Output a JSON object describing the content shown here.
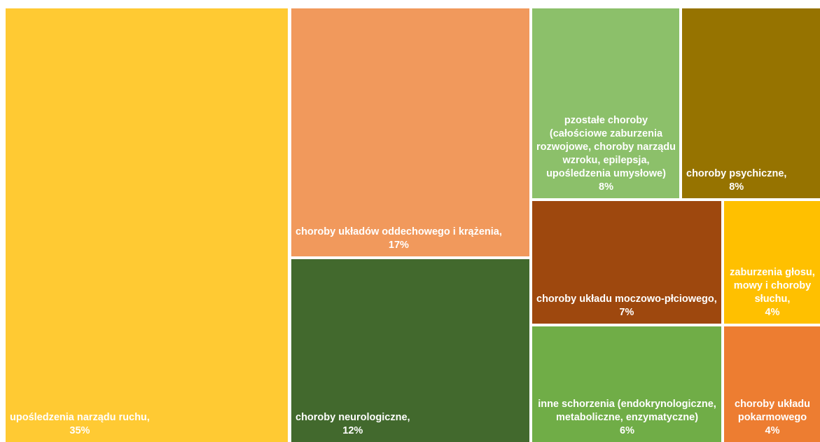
{
  "chart_data": {
    "type": "treemap",
    "categories": [
      "upośledzenia narządu ruchu,",
      "choroby układów oddechowego i krążenia,",
      "choroby neurologiczne,",
      "pzostałe choroby (całościowe zaburzenia rozwojowe, choroby narządu wzroku, epilepsja, upośledzenia umysłowe)",
      "choroby psychiczne,",
      "choroby układu moczowo-płciowego,",
      "zaburzenia głosu, mowy i choroby słuchu,",
      "inne schorzenia (endokrynologiczne, metaboliczne, enzymatyczne)",
      "choroby układu pokarmowego"
    ],
    "values": [
      35,
      17,
      12,
      8,
      8,
      7,
      4,
      6,
      4
    ],
    "value_labels": [
      "35%",
      "17%",
      "12%",
      "8%",
      "8%",
      "7%",
      "4%",
      "6%",
      "4%"
    ],
    "colors": [
      "#ffca33",
      "#f1995c",
      "#42692d",
      "#8cc06a",
      "#967300",
      "#9e480e",
      "#ffc000",
      "#70ad47",
      "#ed7d31"
    ]
  }
}
